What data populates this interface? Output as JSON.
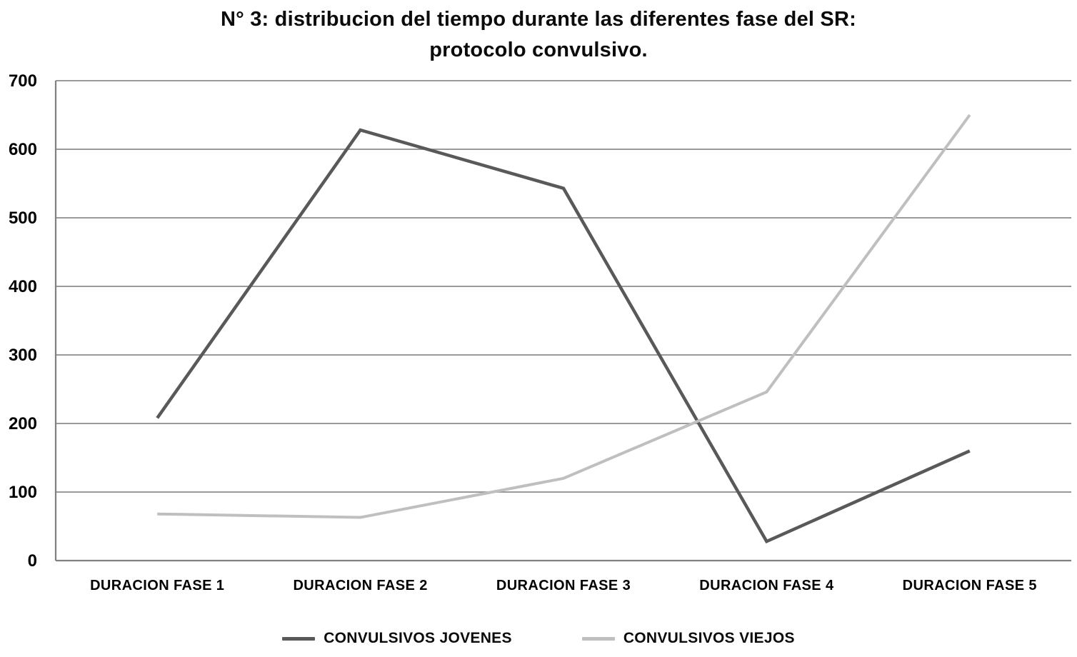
{
  "title": {
    "line1": "N° 3: distribucion del tiempo durante las diferentes fase del SR:",
    "line2": "protocolo convulsivo."
  },
  "chart_data": {
    "type": "line",
    "title": "N° 3: distribucion del tiempo durante las diferentes fase del SR: protocolo convulsivo.",
    "categories": [
      "DURACION FASE 1",
      "DURACION FASE 2",
      "DURACION FASE 3",
      "DURACION FASE 4",
      "DURACION FASE 5"
    ],
    "series": [
      {
        "name": "CONVULSIVOS JOVENES",
        "color": "#595959",
        "stroke_width": 4.5,
        "values": [
          208,
          628,
          543,
          28,
          160
        ]
      },
      {
        "name": "CONVULSIVOS VIEJOS",
        "color": "#bfbfbf",
        "stroke_width": 4,
        "values": [
          68,
          63,
          120,
          246,
          650
        ]
      }
    ],
    "xlabel": "",
    "ylabel": "",
    "ylim": [
      0,
      700
    ],
    "ytick_step": 100,
    "ytick_labels": [
      "0",
      "100",
      "200",
      "300",
      "400",
      "500",
      "600",
      "700"
    ],
    "grid": "horizontal",
    "legend_position": "bottom-center",
    "colors": {
      "grid": "#8c8c8c",
      "axis": "#808080",
      "text": "#000000",
      "background": "#ffffff"
    }
  }
}
